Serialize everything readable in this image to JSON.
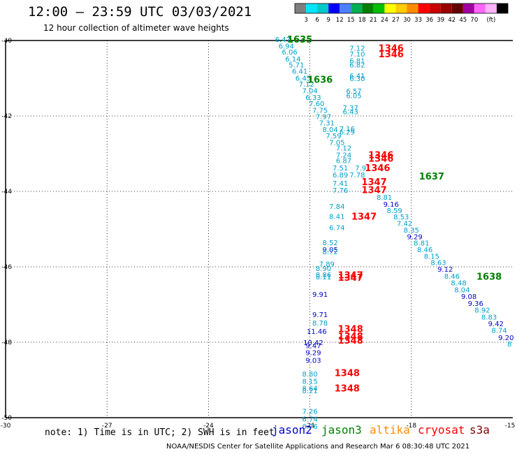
{
  "header": {
    "title": "12:00 — 23:59 UTC 03/03/2021",
    "subtitle": "12 hour collection of altimeter wave heights"
  },
  "colorbar": {
    "colors": [
      "#7f7f7f",
      "#00e5ff",
      "#00c8c8",
      "#0000ff",
      "#4d7fff",
      "#00b050",
      "#008000",
      "#00c000",
      "#ffff00",
      "#ffcc00",
      "#ff8c00",
      "#ff0000",
      "#cc0000",
      "#990000",
      "#660000",
      "#a000a0",
      "#ff66ff",
      "#ffb3ff",
      "#000000"
    ],
    "ticks": [
      "3",
      "6",
      "9",
      "12",
      "15",
      "18",
      "21",
      "24",
      "27",
      "30",
      "33",
      "36",
      "39",
      "42",
      "45",
      "70"
    ],
    "unit": "(ft)"
  },
  "axes": {
    "y_labels": [
      "-40",
      "-42",
      "-44",
      "-46",
      "-48",
      "-50"
    ],
    "x_labels": [
      "-30",
      "-27",
      "-24",
      "-21",
      "-18",
      "-15"
    ]
  },
  "footer": {
    "note": "note: 1) Time is in UTC; 2) SWH is in feet",
    "credit": "NOAA/NESDIS Center for Satellite Applications and Research   Mar  6 08:30:48 UTC 2021"
  },
  "legend": [
    {
      "name": "jason2",
      "color": "#0000cc"
    },
    {
      "name": "jason3",
      "color": "#008000"
    },
    {
      "name": "altika",
      "color": "#ff8c00"
    },
    {
      "name": "cryosat",
      "color": "#ff0000"
    },
    {
      "name": "s3a",
      "color": "#800000"
    }
  ],
  "map_data": {
    "times": [
      {
        "t": "1635",
        "lon": -21.3,
        "lat": -39.96,
        "color": "#008000"
      },
      {
        "t": "1636",
        "lon": -20.7,
        "lat": -41.03,
        "color": "#008000"
      },
      {
        "t": "1637",
        "lon": -17.4,
        "lat": -43.59,
        "color": "#008000"
      },
      {
        "t": "1638",
        "lon": -15.7,
        "lat": -46.25,
        "color": "#008000"
      },
      {
        "t": "1346",
        "lon": -18.6,
        "lat": -40.19,
        "color": "#ff0000"
      },
      {
        "t": "1346",
        "lon": -18.6,
        "lat": -40.35,
        "color": "#ff0000"
      },
      {
        "t": "1346",
        "lon": -18.9,
        "lat": -43.03,
        "color": "#ff0000"
      },
      {
        "t": "1346",
        "lon": -18.9,
        "lat": -43.12,
        "color": "#ff0000"
      },
      {
        "t": "1346",
        "lon": -19.0,
        "lat": -43.37,
        "color": "#ff0000"
      },
      {
        "t": "1347",
        "lon": -19.1,
        "lat": -43.74,
        "color": "#ff0000"
      },
      {
        "t": "1347",
        "lon": -19.1,
        "lat": -43.95,
        "color": "#ff0000"
      },
      {
        "t": "1347",
        "lon": -19.4,
        "lat": -44.66,
        "color": "#ff0000"
      },
      {
        "t": "1347",
        "lon": -19.8,
        "lat": -46.21,
        "color": "#ff0000"
      },
      {
        "t": "1347",
        "lon": -19.8,
        "lat": -46.28,
        "color": "#ff0000"
      },
      {
        "t": "1348",
        "lon": -19.8,
        "lat": -47.64,
        "color": "#ff0000"
      },
      {
        "t": "1348",
        "lon": -19.8,
        "lat": -47.83,
        "color": "#ff0000"
      },
      {
        "t": "1348",
        "lon": -19.8,
        "lat": -47.94,
        "color": "#ff0000"
      },
      {
        "t": "1348",
        "lon": -19.9,
        "lat": -48.81,
        "color": "#ff0000"
      },
      {
        "t": "1348",
        "lon": -19.9,
        "lat": -49.21,
        "color": "#ff0000"
      }
    ],
    "values": [
      {
        "v": "6.47",
        "lon": -21.8,
        "lat": -39.96,
        "color": "#00a0c8"
      },
      {
        "v": "6.94",
        "lon": -21.7,
        "lat": -40.14,
        "color": "#00a0c8"
      },
      {
        "v": "6.06",
        "lon": -21.6,
        "lat": -40.3,
        "color": "#00a0c8"
      },
      {
        "v": "6.14",
        "lon": -21.5,
        "lat": -40.48,
        "color": "#00a0c8"
      },
      {
        "v": "5.71",
        "lon": -21.4,
        "lat": -40.64,
        "color": "#00a0c8"
      },
      {
        "v": "6.41",
        "lon": -21.3,
        "lat": -40.81,
        "color": "#00a0c8"
      },
      {
        "v": "6.45",
        "lon": -21.2,
        "lat": -40.99,
        "color": "#00a0c8"
      },
      {
        "v": "7.12",
        "lon": -21.1,
        "lat": -41.15,
        "color": "#00a0c8"
      },
      {
        "v": "7.04",
        "lon": -21.0,
        "lat": -41.32,
        "color": "#00a0c8"
      },
      {
        "v": "6.33",
        "lon": -20.9,
        "lat": -41.5,
        "color": "#00a0c8"
      },
      {
        "v": "7.60",
        "lon": -20.8,
        "lat": -41.67,
        "color": "#00a0c8"
      },
      {
        "v": "7.75",
        "lon": -20.7,
        "lat": -41.84,
        "color": "#00a0c8"
      },
      {
        "v": "7.97",
        "lon": -20.6,
        "lat": -42.01,
        "color": "#00a0c8"
      },
      {
        "v": "7.31",
        "lon": -20.5,
        "lat": -42.18,
        "color": "#00a0c8"
      },
      {
        "v": "8.04",
        "lon": -20.4,
        "lat": -42.35,
        "color": "#00a0c8"
      },
      {
        "v": "7.59",
        "lon": -20.3,
        "lat": -42.52,
        "color": "#00a0c8"
      },
      {
        "v": "7.05",
        "lon": -20.2,
        "lat": -42.69,
        "color": "#00a0c8"
      },
      {
        "v": "7.12",
        "lon": -19.6,
        "lat": -40.19,
        "color": "#00a0c8"
      },
      {
        "v": "7.10",
        "lon": -19.6,
        "lat": -40.35,
        "color": "#00a0c8"
      },
      {
        "v": "6.81",
        "lon": -19.6,
        "lat": -40.53,
        "color": "#00a0c8"
      },
      {
        "v": "6.82",
        "lon": -19.6,
        "lat": -40.64,
        "color": "#00a0c8"
      },
      {
        "v": "6.41",
        "lon": -19.6,
        "lat": -40.93,
        "color": "#00a0c8"
      },
      {
        "v": "6.30",
        "lon": -19.6,
        "lat": -41.0,
        "color": "#00a0c8"
      },
      {
        "v": "6.57",
        "lon": -19.7,
        "lat": -41.33,
        "color": "#00a0c8"
      },
      {
        "v": "6.05",
        "lon": -19.7,
        "lat": -41.45,
        "color": "#00a0c8"
      },
      {
        "v": "7.37",
        "lon": -19.8,
        "lat": -41.78,
        "color": "#00a0c8"
      },
      {
        "v": "6.43",
        "lon": -19.8,
        "lat": -41.88,
        "color": "#00a0c8"
      },
      {
        "v": "7.16",
        "lon": -19.9,
        "lat": -42.33,
        "color": "#00a0c8"
      },
      {
        "v": "6.29",
        "lon": -19.9,
        "lat": -42.42,
        "color": "#00a0c8"
      },
      {
        "v": "7.12",
        "lon": -20.0,
        "lat": -42.84,
        "color": "#00a0c8"
      },
      {
        "v": "7.24",
        "lon": -20.0,
        "lat": -43.03,
        "color": "#00a0c8"
      },
      {
        "v": "6.87",
        "lon": -20.0,
        "lat": -43.18,
        "color": "#00a0c8"
      },
      {
        "v": "7.51",
        "lon": -20.1,
        "lat": -43.37,
        "color": "#00a0c8"
      },
      {
        "v": "7.9",
        "lon": -19.5,
        "lat": -43.37,
        "color": "#00a0c8"
      },
      {
        "v": "6.89",
        "lon": -20.1,
        "lat": -43.56,
        "color": "#00a0c8"
      },
      {
        "v": "7.78",
        "lon": -19.6,
        "lat": -43.56,
        "color": "#00a0c8"
      },
      {
        "v": "7.41",
        "lon": -20.1,
        "lat": -43.78,
        "color": "#00a0c8"
      },
      {
        "v": "7.76",
        "lon": -20.1,
        "lat": -43.96,
        "color": "#00a0c8"
      },
      {
        "v": "8.81",
        "lon": -18.8,
        "lat": -44.15,
        "color": "#00a0c8"
      },
      {
        "v": "9.16",
        "lon": -18.6,
        "lat": -44.33,
        "color": "#0000cc"
      },
      {
        "v": "8.59",
        "lon": -18.5,
        "lat": -44.5,
        "color": "#00a0c8"
      },
      {
        "v": "8.53",
        "lon": -18.3,
        "lat": -44.67,
        "color": "#00a0c8"
      },
      {
        "v": "7.42",
        "lon": -18.2,
        "lat": -44.84,
        "color": "#00a0c8"
      },
      {
        "v": "8.35",
        "lon": -18.0,
        "lat": -45.02,
        "color": "#00a0c8"
      },
      {
        "v": "9.29",
        "lon": -17.9,
        "lat": -45.19,
        "color": "#0000cc"
      },
      {
        "v": "8.81",
        "lon": -17.7,
        "lat": -45.36,
        "color": "#00a0c8"
      },
      {
        "v": "8.46",
        "lon": -17.6,
        "lat": -45.54,
        "color": "#00a0c8"
      },
      {
        "v": "8.15",
        "lon": -17.4,
        "lat": -45.71,
        "color": "#00a0c8"
      },
      {
        "v": "8.63",
        "lon": -17.2,
        "lat": -45.88,
        "color": "#00a0c8"
      },
      {
        "v": "9.12",
        "lon": -17.0,
        "lat": -46.06,
        "color": "#0000cc"
      },
      {
        "v": "8.46",
        "lon": -16.8,
        "lat": -46.24,
        "color": "#00a0c8"
      },
      {
        "v": "8.48",
        "lon": -16.6,
        "lat": -46.42,
        "color": "#00a0c8"
      },
      {
        "v": "8.04",
        "lon": -16.5,
        "lat": -46.6,
        "color": "#00a0c8"
      },
      {
        "v": "9.08",
        "lon": -16.3,
        "lat": -46.78,
        "color": "#0000cc"
      },
      {
        "v": "9.36",
        "lon": -16.1,
        "lat": -46.96,
        "color": "#0000cc"
      },
      {
        "v": "8.92",
        "lon": -15.9,
        "lat": -47.14,
        "color": "#00a0c8"
      },
      {
        "v": "8.83",
        "lon": -15.7,
        "lat": -47.32,
        "color": "#00a0c8"
      },
      {
        "v": "9.42",
        "lon": -15.5,
        "lat": -47.5,
        "color": "#0000cc"
      },
      {
        "v": "8.74",
        "lon": -15.4,
        "lat": -47.68,
        "color": "#00a0c8"
      },
      {
        "v": "9.20",
        "lon": -15.2,
        "lat": -47.87,
        "color": "#0000cc"
      },
      {
        "v": "8",
        "lon": -15.1,
        "lat": -48.04,
        "color": "#00a0c8"
      },
      {
        "v": "7.84",
        "lon": -20.2,
        "lat": -44.39,
        "color": "#00a0c8"
      },
      {
        "v": "8.41",
        "lon": -20.2,
        "lat": -44.66,
        "color": "#00a0c8"
      },
      {
        "v": "6.74",
        "lon": -20.2,
        "lat": -44.95,
        "color": "#00a0c8"
      },
      {
        "v": "8.52",
        "lon": -20.4,
        "lat": -45.35,
        "color": "#00a0c8"
      },
      {
        "v": "9.05",
        "lon": -20.4,
        "lat": -45.54,
        "color": "#0000cc"
      },
      {
        "v": "8.72",
        "lon": -20.4,
        "lat": -45.59,
        "color": "#00a0c8"
      },
      {
        "v": "7.89",
        "lon": -20.5,
        "lat": -45.92,
        "color": "#00a0c8"
      },
      {
        "v": "8.90",
        "lon": -20.6,
        "lat": -46.04,
        "color": "#00a0c8"
      },
      {
        "v": "8.86",
        "lon": -20.6,
        "lat": -46.2,
        "color": "#00a0c8"
      },
      {
        "v": "8.11",
        "lon": -20.6,
        "lat": -46.26,
        "color": "#00a0c8"
      },
      {
        "v": "9.91",
        "lon": -20.7,
        "lat": -46.72,
        "color": "#0000cc"
      },
      {
        "v": "9.71",
        "lon": -20.7,
        "lat": -47.26,
        "color": "#0000cc"
      },
      {
        "v": "8.78",
        "lon": -20.7,
        "lat": -47.48,
        "color": "#00a0c8"
      },
      {
        "v": "11.46",
        "lon": -20.8,
        "lat": -47.7,
        "color": "#0000cc"
      },
      {
        "v": "10.42",
        "lon": -20.9,
        "lat": -48.0,
        "color": "#0000cc"
      },
      {
        "v": "9.47",
        "lon": -20.9,
        "lat": -48.08,
        "color": "#0000cc"
      },
      {
        "v": "9.29",
        "lon": -20.9,
        "lat": -48.27,
        "color": "#0000cc"
      },
      {
        "v": "9.03",
        "lon": -20.9,
        "lat": -48.47,
        "color": "#0000cc"
      },
      {
        "v": "8.80",
        "lon": -21.0,
        "lat": -48.83,
        "color": "#00a0c8"
      },
      {
        "v": "8.15",
        "lon": -21.0,
        "lat": -49.03,
        "color": "#00a0c8"
      },
      {
        "v": "8.64",
        "lon": -21.0,
        "lat": -49.21,
        "color": "#00a0c8"
      },
      {
        "v": "8.21",
        "lon": -21.0,
        "lat": -49.28,
        "color": "#00a0c8"
      },
      {
        "v": "7.26",
        "lon": -21.0,
        "lat": -49.82,
        "color": "#00a0c8"
      },
      {
        "v": "6.74",
        "lon": -21.0,
        "lat": -50.03,
        "color": "#00a0c8"
      },
      {
        "v": "6.76",
        "lon": -21.0,
        "lat": -50.22,
        "color": "#00a0c8"
      }
    ]
  }
}
